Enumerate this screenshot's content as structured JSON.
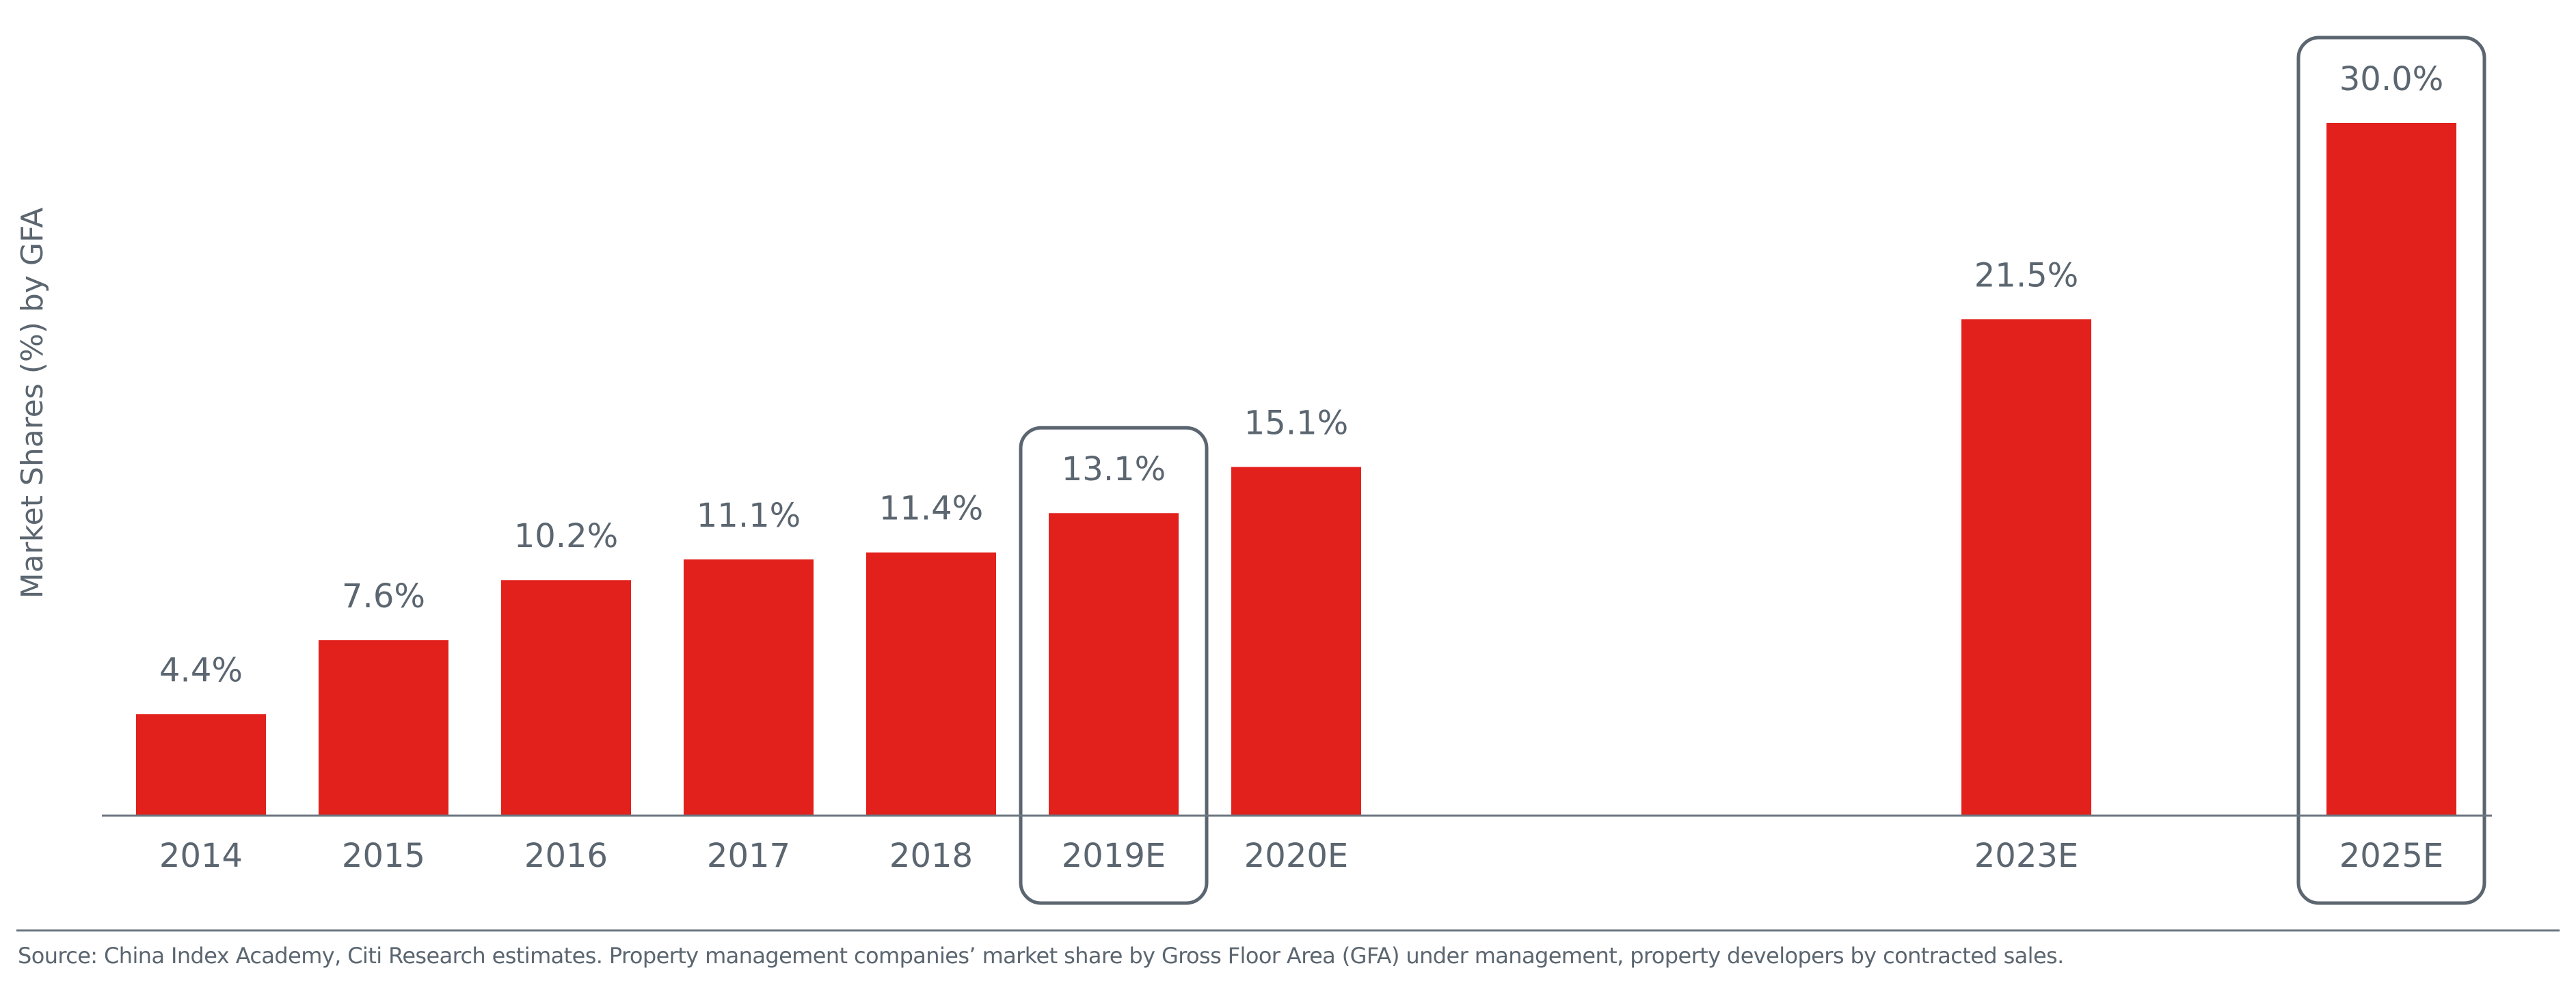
{
  "chart_data": {
    "type": "bar",
    "title": "",
    "xlabel": "",
    "ylabel": "Market Shares (%) by GFA",
    "categories": [
      "2014",
      "2015",
      "2016",
      "2017",
      "2018",
      "2019E",
      "2020E",
      "2023E",
      "2025E"
    ],
    "values": [
      4.4,
      7.6,
      10.2,
      11.1,
      11.4,
      13.1,
      15.1,
      21.5,
      30.0
    ],
    "data_labels": [
      "4.4%",
      "7.6%",
      "10.2%",
      "11.1%",
      "11.4%",
      "13.1%",
      "15.1%",
      "21.5%",
      "30.0%"
    ],
    "highlighted": [
      "2019E",
      "2025E"
    ],
    "ylim": [
      0,
      30
    ],
    "grid": false,
    "bar_color": "#e2211c",
    "highlight_color": "#5b6670"
  },
  "footer": {
    "source": "Source: China Index Academy, Citi Research estimates. Property management companies’ market share by Gross Floor Area (GFA) under management, property developers by contracted sales."
  }
}
